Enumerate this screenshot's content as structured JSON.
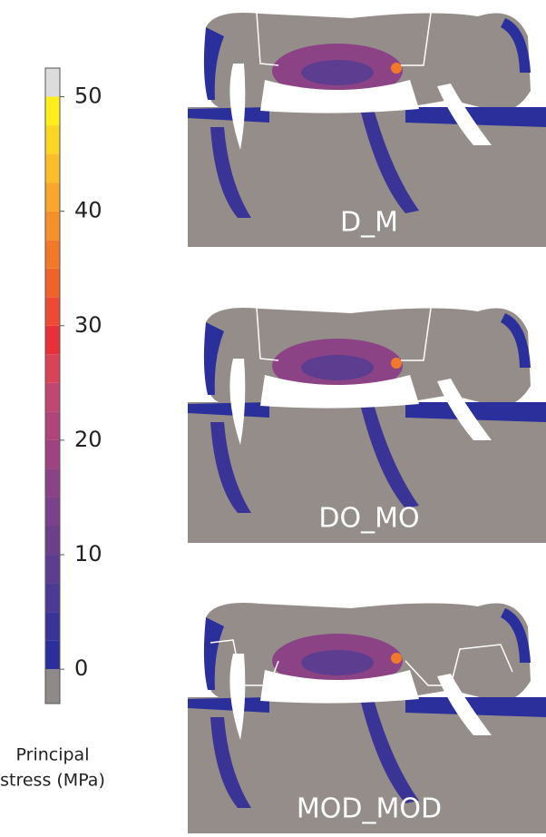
{
  "colorbar": {
    "lim": [
      -3,
      52.5
    ],
    "ticks": [
      0,
      10,
      20,
      30,
      40,
      50
    ],
    "under_color": "#8f8a87",
    "colors": [
      "#2b2f9c",
      "#3b3497",
      "#4c3a93",
      "#5c3d90",
      "#6b3f8c",
      "#7b418a",
      "#8c4386",
      "#9d4480",
      "#ae4679",
      "#c04771",
      "#d84358",
      "#e8303a",
      "#ec4a33",
      "#f0622c",
      "#f3792a",
      "#f6902a",
      "#f8a72a",
      "#fabf28",
      "#fcd624",
      "#ffee1c",
      "#dcdcdc"
    ],
    "label": [
      "Principal",
      "stress (MPa)"
    ]
  },
  "panels": [
    {
      "label": "D_M"
    },
    {
      "label": "DO_MO"
    },
    {
      "label": "MOD_MOD"
    }
  ]
}
